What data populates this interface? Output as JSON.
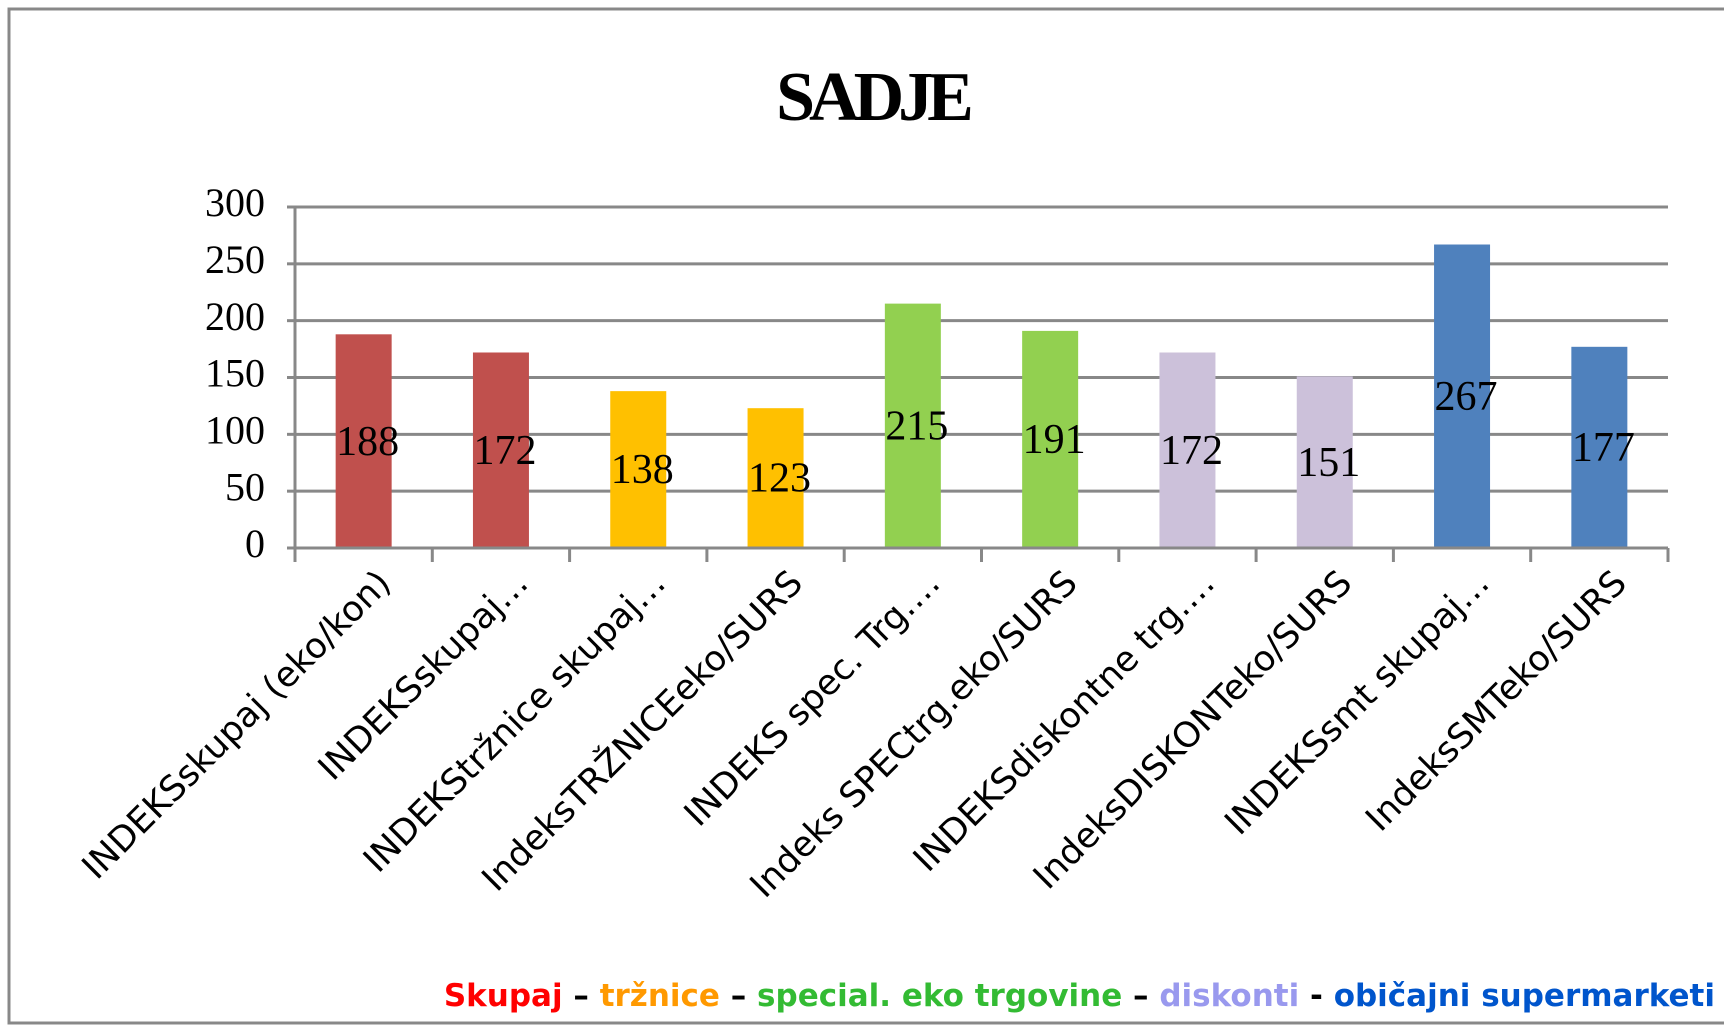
{
  "chart_data": {
    "type": "bar",
    "title": "SADJE",
    "categories": [
      "INDEKSskupaj (eko/kon)",
      "INDEKSskupaj…",
      "INDEKStržnice skupaj…",
      "IndeksTRŽNICEeko/SURS",
      "INDEKS spec. Trg.…",
      "Indeks SPECtrg.eko/SURS",
      "INDEKSdiskontne trg.…",
      "IndeksDISKONTeko/SURS",
      "INDEKSsmt skupaj…",
      "IndeksSMTeko/SURS"
    ],
    "values": [
      188,
      172,
      138,
      123,
      215,
      191,
      172,
      151,
      267,
      177
    ],
    "colors": [
      "#c0504d",
      "#c0504d",
      "#ffc000",
      "#ffc000",
      "#92d050",
      "#92d050",
      "#ccc1da",
      "#ccc1da",
      "#4f81bd",
      "#4f81bd"
    ],
    "ylim": [
      0,
      300
    ],
    "yticks": [
      0,
      50,
      100,
      150,
      200,
      250,
      300
    ],
    "grid": true,
    "legend_text": [
      {
        "text": "Skupaj",
        "color": "#ff0000"
      },
      {
        "text": " – ",
        "color": "#000000"
      },
      {
        "text": "tržnice",
        "color": "#ff9900"
      },
      {
        "text": " – ",
        "color": "#000000"
      },
      {
        "text": "special. eko trgovine",
        "color": "#33bb33"
      },
      {
        "text": " – ",
        "color": "#000000"
      },
      {
        "text": "diskonti",
        "color": "#9999ee"
      },
      {
        "text": " - ",
        "color": "#000000"
      },
      {
        "text": "običajni supermarketi",
        "color": "#0055cc"
      }
    ]
  }
}
